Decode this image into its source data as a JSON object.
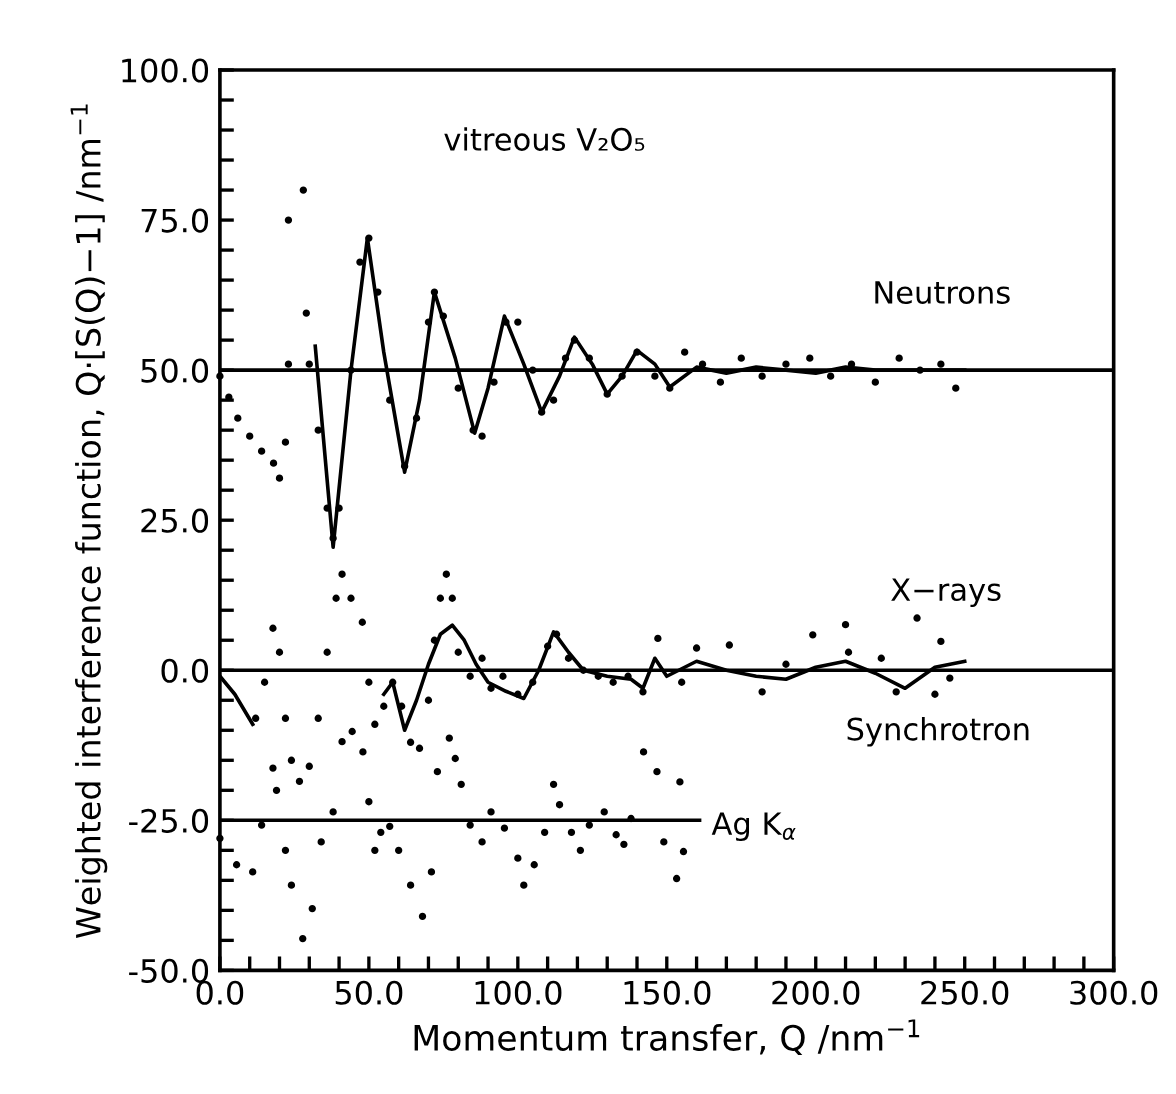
{
  "chart_data": {
    "type": "scatter",
    "xlabel": "Momentum transfer, Q /nm$^{−1}$",
    "ylabel": "Weighted interference function, Q·[S(Q)−1] /nm$^{−1}$",
    "xlim": [
      0,
      300
    ],
    "ylim": [
      -50,
      100
    ],
    "xticks": [
      {
        "value": 0,
        "label": "0.0"
      },
      {
        "value": 10,
        "label": null
      },
      {
        "value": 20,
        "label": null
      },
      {
        "value": 30,
        "label": null
      },
      {
        "value": 40,
        "label": null
      },
      {
        "value": 50,
        "label": "50.0"
      },
      {
        "value": 60,
        "label": null
      },
      {
        "value": 70,
        "label": null
      },
      {
        "value": 80,
        "label": null
      },
      {
        "value": 90,
        "label": null
      },
      {
        "value": 100,
        "label": "100.0"
      },
      {
        "value": 110,
        "label": null
      },
      {
        "value": 120,
        "label": null
      },
      {
        "value": 130,
        "label": null
      },
      {
        "value": 140,
        "label": null
      },
      {
        "value": 150,
        "label": "150.0"
      },
      {
        "value": 160,
        "label": null
      },
      {
        "value": 170,
        "label": null
      },
      {
        "value": 180,
        "label": null
      },
      {
        "value": 190,
        "label": null
      },
      {
        "value": 200,
        "label": "200.0"
      },
      {
        "value": 210,
        "label": null
      },
      {
        "value": 220,
        "label": null
      },
      {
        "value": 230,
        "label": null
      },
      {
        "value": 240,
        "label": null
      },
      {
        "value": 250,
        "label": "250.0"
      },
      {
        "value": 260,
        "label": null
      },
      {
        "value": 270,
        "label": null
      },
      {
        "value": 280,
        "label": null
      },
      {
        "value": 290,
        "label": null
      },
      {
        "value": 300,
        "label": "300.0"
      }
    ],
    "yticks": [
      {
        "value": -50,
        "label": "-50.0"
      },
      {
        "value": -45,
        "label": null
      },
      {
        "value": -40,
        "label": null
      },
      {
        "value": -35,
        "label": null
      },
      {
        "value": -30,
        "label": null
      },
      {
        "value": -25,
        "label": "-25.0"
      },
      {
        "value": -20,
        "label": null
      },
      {
        "value": -15,
        "label": null
      },
      {
        "value": -10,
        "label": null
      },
      {
        "value": -5,
        "label": null
      },
      {
        "value": 0,
        "label": "0.0"
      },
      {
        "value": 5,
        "label": null
      },
      {
        "value": 10,
        "label": null
      },
      {
        "value": 15,
        "label": null
      },
      {
        "value": 20,
        "label": null
      },
      {
        "value": 25,
        "label": "25.0"
      },
      {
        "value": 30,
        "label": null
      },
      {
        "value": 35,
        "label": null
      },
      {
        "value": 40,
        "label": null
      },
      {
        "value": 45,
        "label": null
      },
      {
        "value": 50,
        "label": "50.0"
      },
      {
        "value": 55,
        "label": null
      },
      {
        "value": 60,
        "label": null
      },
      {
        "value": 65,
        "label": null
      },
      {
        "value": 70,
        "label": null
      },
      {
        "value": 75,
        "label": "75.0"
      },
      {
        "value": 80,
        "label": null
      },
      {
        "value": 85,
        "label": null
      },
      {
        "value": 90,
        "label": null
      },
      {
        "value": 95,
        "label": null
      },
      {
        "value": 100,
        "label": "100.0"
      }
    ],
    "grid": false,
    "legend": false,
    "ref_lines": [
      {
        "axis": "y",
        "value": 50,
        "color": "#000000"
      },
      {
        "axis": "y",
        "value": 0,
        "color": "#000000"
      }
    ],
    "annotations": [
      "vitreous V₂O₅",
      "Neutrons",
      "X−rays",
      "Synchrotron",
      "Ag K$_{α}$"
    ],
    "series": [
      {
        "marker": "circle",
        "color": "#000000",
        "x": [
          0,
          3,
          6,
          10,
          14,
          18,
          20,
          22,
          23,
          23,
          28,
          29,
          30,
          33,
          36,
          38,
          40,
          44,
          47,
          50,
          53,
          57,
          62,
          66,
          70,
          72,
          75,
          80,
          85,
          88,
          92,
          96,
          100,
          105,
          108,
          112,
          116,
          119,
          124,
          130,
          135,
          140,
          146,
          151,
          156,
          162,
          168,
          175,
          182,
          190,
          198,
          205,
          212,
          220,
          228,
          235,
          242,
          247
        ],
        "values": [
          49,
          45.5,
          42,
          39,
          36.5,
          34.5,
          32,
          38,
          75,
          51,
          80,
          59.5,
          51,
          40,
          27,
          22,
          27,
          50,
          68,
          72,
          63,
          45,
          34,
          42,
          58,
          63,
          59,
          47,
          40,
          39,
          48,
          58,
          58,
          50,
          43,
          45,
          52,
          55,
          52,
          46,
          49,
          53,
          49,
          47,
          53,
          51,
          48,
          52,
          49,
          51,
          52,
          49,
          51,
          48,
          52,
          50,
          51,
          47
        ]
      },
      {
        "type": "line",
        "color": "#000000",
        "x": [
          32,
          38,
          44,
          49.5,
          55,
          62,
          67,
          72,
          79,
          85.5,
          90,
          95.5,
          102,
          108,
          114,
          119,
          125,
          130,
          135,
          140,
          146,
          151,
          160,
          170,
          180,
          190,
          200,
          210,
          220,
          230,
          240,
          250
        ],
        "values": [
          54,
          20.5,
          50,
          72,
          53,
          33,
          45,
          63,
          52,
          39.5,
          47,
          59,
          51,
          43,
          49,
          55.5,
          51,
          46,
          49,
          53.3,
          51,
          47.2,
          50.5,
          49.5,
          50.5,
          50,
          49.5,
          50.5,
          50,
          50,
          50,
          50
        ]
      },
      {
        "marker": "circle",
        "color": "#000000",
        "x": [
          12,
          15,
          17.8,
          20,
          22,
          24,
          26.7,
          30,
          33,
          36,
          39,
          41,
          44,
          47.8,
          50,
          52,
          55,
          58,
          61,
          64,
          67,
          70,
          72,
          74,
          76,
          78,
          80,
          84,
          88,
          91,
          95,
          100,
          105,
          110,
          113,
          117,
          122,
          127,
          132,
          137,
          142,
          147,
          155,
          160,
          171,
          182,
          190,
          199,
          210,
          211,
          222,
          227,
          234,
          240,
          242,
          245
        ],
        "values": [
          -8,
          -2,
          7,
          3,
          -8,
          -15,
          -18.5,
          -16,
          -8,
          3,
          12,
          16,
          12,
          8,
          -2,
          -9,
          -6,
          -2,
          -6,
          -12,
          -13,
          -5,
          5,
          12,
          16,
          12,
          3,
          -1,
          2,
          -3,
          -1,
          -4,
          -2,
          4,
          6,
          2,
          0,
          -1,
          -2,
          -1,
          -3.6,
          5.3,
          -2,
          3.7,
          4.2,
          -3.6,
          1,
          5.9,
          7.6,
          3,
          2,
          -3.6,
          8.7,
          -4,
          4.8,
          -1.3
        ]
      },
      {
        "type": "line",
        "color": "#000000",
        "x": [
          0,
          5,
          11,
          33,
          55,
          58,
          62,
          66,
          70,
          74,
          78,
          82,
          86,
          90,
          96,
          102,
          107,
          112,
          117,
          122,
          130,
          138,
          142,
          146,
          150,
          160,
          170,
          180,
          190,
          200,
          210,
          220,
          230,
          240,
          250
        ],
        "values": [
          -1,
          -4,
          -9,
          null,
          -4,
          -2,
          -10,
          -5,
          1,
          6,
          7.5,
          5,
          1,
          -2,
          -3.5,
          -4.7,
          0,
          6.4,
          3,
          0,
          -1,
          -1.5,
          -3,
          2,
          -1,
          1.5,
          0,
          -1,
          -1.5,
          0.5,
          1.5,
          -0.5,
          -3,
          0.5,
          1.5
        ]
      },
      {
        "marker": "circle",
        "color": "#000000",
        "x": [
          0,
          5.6,
          11,
          14,
          17.8,
          19,
          22,
          24,
          27.8,
          31,
          34,
          38,
          41,
          44.4,
          48,
          50,
          52,
          54,
          57,
          60,
          64,
          68,
          71,
          73,
          77,
          79,
          81,
          84,
          88,
          91,
          95.5,
          100,
          102,
          105.5,
          109,
          112,
          114,
          118,
          121,
          124,
          129,
          133,
          138,
          135.6,
          142.2,
          146.7,
          149,
          153.3,
          154.4,
          155.6
        ],
        "values": [
          -28,
          -32.4,
          -33.6,
          -25.8,
          -16.3,
          -20,
          -30,
          -35.8,
          -44.7,
          -39.7,
          -28.6,
          -23.6,
          -11.9,
          -10.2,
          -13.6,
          -21.9,
          -30,
          -27,
          -26,
          -30,
          -35.8,
          -41,
          -33.6,
          -16.9,
          -11.3,
          -14.7,
          -19,
          -25.8,
          -28.6,
          -23.6,
          -26.3,
          -31.3,
          -35.8,
          -32.4,
          -27,
          -19,
          -22.4,
          -27,
          -30,
          -25.8,
          -23.6,
          -27.4,
          -24.7,
          -29,
          -13.6,
          -16.9,
          -28.6,
          -34.7,
          -18.6,
          -30.2
        ]
      },
      {
        "type": "line",
        "color": "#000000",
        "x": [
          0,
          161
        ],
        "values": [
          -25,
          -25
        ]
      }
    ]
  }
}
